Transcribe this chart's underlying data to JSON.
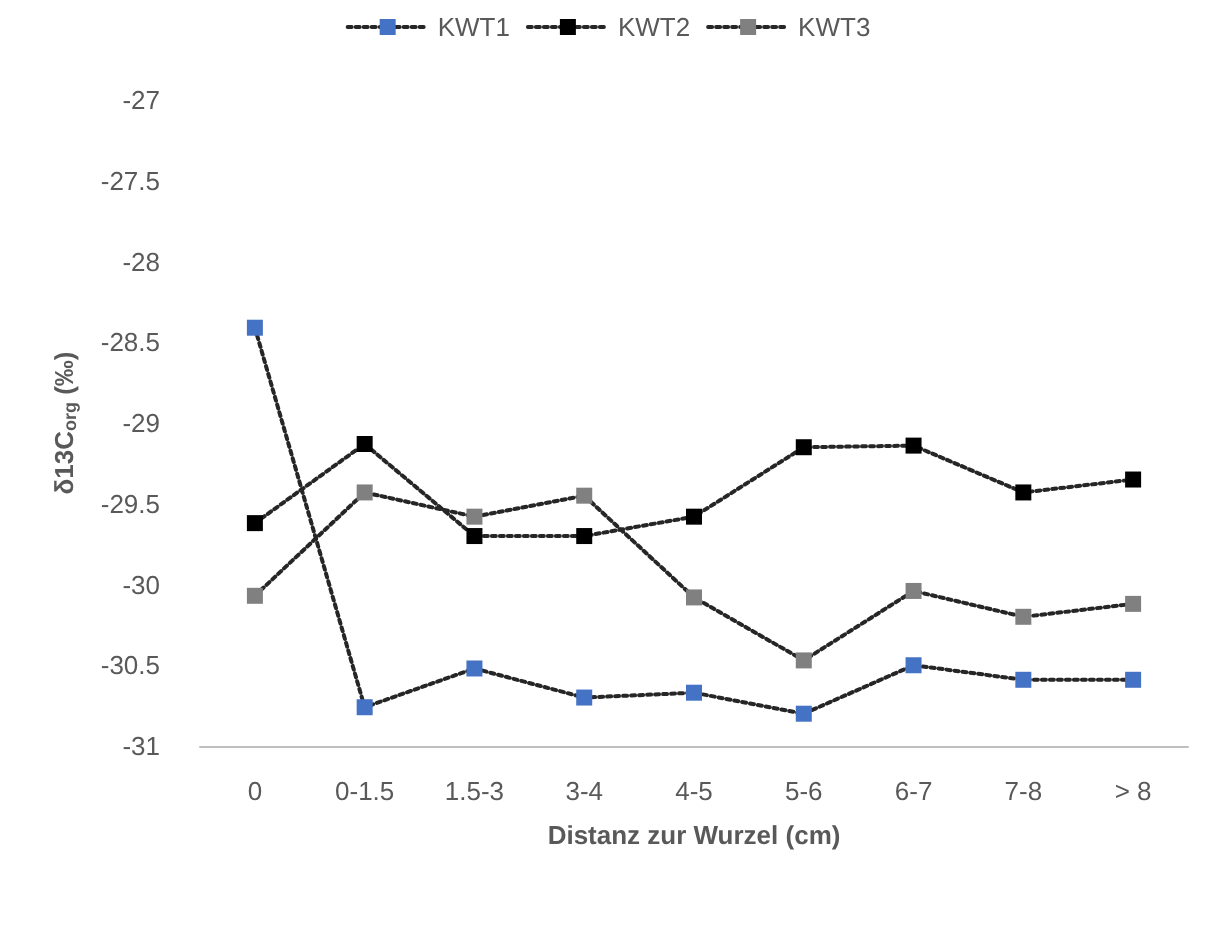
{
  "chart_data": {
    "type": "line",
    "xlabel": "Distanz zur Wurzel (cm)",
    "ylabel": "δ13C$_{org}$ (‰)",
    "categories": [
      "0",
      "0-1.5",
      "1.5-3",
      "3-4",
      "4-5",
      "5-6",
      "6-7",
      "7-8",
      "> 8"
    ],
    "series": [
      {
        "name": "KWT1",
        "color": "#4472c4",
        "values": [
          -28.41,
          -30.76,
          -30.52,
          -30.7,
          -30.67,
          -30.8,
          -30.5,
          -30.59,
          -30.59
        ]
      },
      {
        "name": "KWT2",
        "color": "#000000",
        "values": [
          -29.62,
          -29.13,
          -29.7,
          -29.7,
          -29.58,
          -29.15,
          -29.14,
          -29.43,
          -29.35
        ]
      },
      {
        "name": "KWT3",
        "color": "#808080",
        "values": [
          -30.07,
          -29.43,
          -29.58,
          -29.45,
          -30.08,
          -30.47,
          -30.04,
          -30.2,
          -30.12
        ]
      }
    ],
    "ylim": [
      -31,
      -27
    ],
    "yticks": [
      -31,
      -30.5,
      -30,
      -29.5,
      -29,
      -28.5,
      -28,
      -27.5,
      -27
    ],
    "grid": false,
    "legend": "top",
    "marker": "square",
    "line_style": "dotted"
  }
}
